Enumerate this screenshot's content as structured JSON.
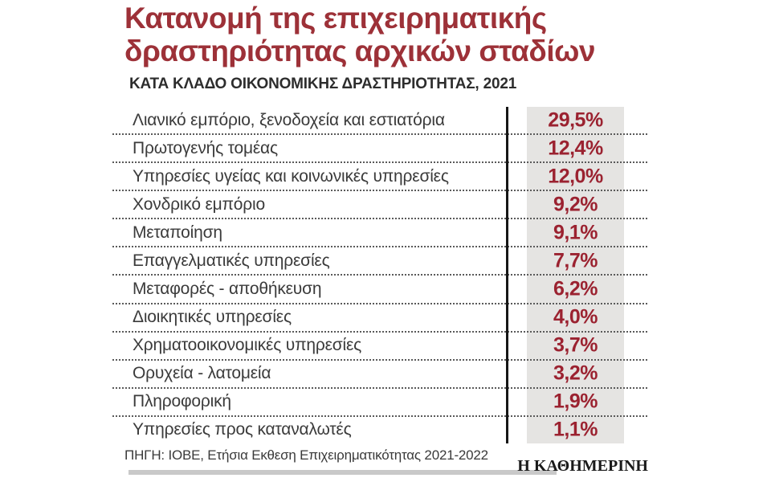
{
  "header": {
    "title_line1": "Κατανομή της επιχειρηματικής",
    "title_line2": "δραστηριότητας αρχικών σταδίων",
    "subtitle": "ΚΑΤΑ ΚΛΑΔΟ ΟΙΚΟΝΟΜΙΚΗΣ ΔΡΑΣΤΗΡΙΟΤΗΤΑΣ, 2021"
  },
  "chart_data": {
    "type": "table",
    "title": "Κατανομή της επιχειρηματικής δραστηριότητας αρχικών σταδίων",
    "subtitle": "ΚΑΤΑ ΚΛΑΔΟ ΟΙΚΟΝΟΜΙΚΗΣ ΔΡΑΣΤΗΡΙΟΤΗΤΑΣ, 2021",
    "unit": "%",
    "categories": [
      "Λιανικό εμπόριο, ξενοδοχεία και εστιατόρια",
      "Πρωτογενής τομέας",
      "Υπηρεσίες υγείας και κοινωνικές υπηρεσίες",
      "Χονδρικό εμπόριο",
      "Μεταποίηση",
      "Επαγγελματικές υπηρεσίες",
      "Μεταφορές - αποθήκευση",
      "Διοικητικές υπηρεσίες",
      "Χρηματοοικονομικές υπηρεσίες",
      "Ορυχεία - λατομεία",
      "Πληροφορική",
      "Υπηρεσίες προς καταναλωτές"
    ],
    "values": [
      29.5,
      12.4,
      12.0,
      9.2,
      9.1,
      7.7,
      6.2,
      4.0,
      3.7,
      3.2,
      1.9,
      1.1
    ],
    "values_display": [
      "29,5%",
      "12,4%",
      "12,0%",
      "9,2%",
      "9,1%",
      "7,7%",
      "6,2%",
      "4,0%",
      "3,7%",
      "3,2%",
      "1,9%",
      "1,1%"
    ]
  },
  "footer": {
    "source": "ΠΗΓΗ: ΙΟΒΕ, Ετήσια Εκθεση Επιχειρηματικότητας 2021-2022",
    "logo": "Η ΚΑΘΗΜΕΡΙΝΗ"
  },
  "colors": {
    "accent_title": "#9d3138",
    "accent_value": "#9b2230",
    "value_col_bg": "#e5e4e2",
    "divider_line": "#161616",
    "dotted_rule": "#5a5a5a",
    "brand_bar": "#c9c9c9"
  }
}
